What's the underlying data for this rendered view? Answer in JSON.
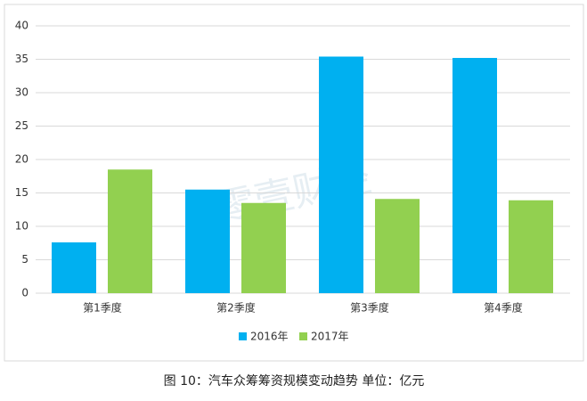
{
  "chart_data": {
    "type": "bar",
    "title": "图 10：汽车众筹筹资规模变动趋势 单位：亿元",
    "watermark": "零壹财经",
    "categories": [
      "第1季度",
      "第2季度",
      "第3季度",
      "第4季度"
    ],
    "series": [
      {
        "name": "2016年",
        "color": "#00b0f0",
        "values": [
          7.6,
          15.5,
          35.4,
          35.2
        ]
      },
      {
        "name": "2017年",
        "color": "#92d050",
        "values": [
          18.5,
          13.5,
          14.1,
          13.9
        ]
      }
    ],
    "ylim": [
      0,
      40
    ],
    "yticks": [
      0,
      5,
      10,
      15,
      20,
      25,
      30,
      35,
      40
    ],
    "grid": true,
    "legend": "bottom"
  }
}
